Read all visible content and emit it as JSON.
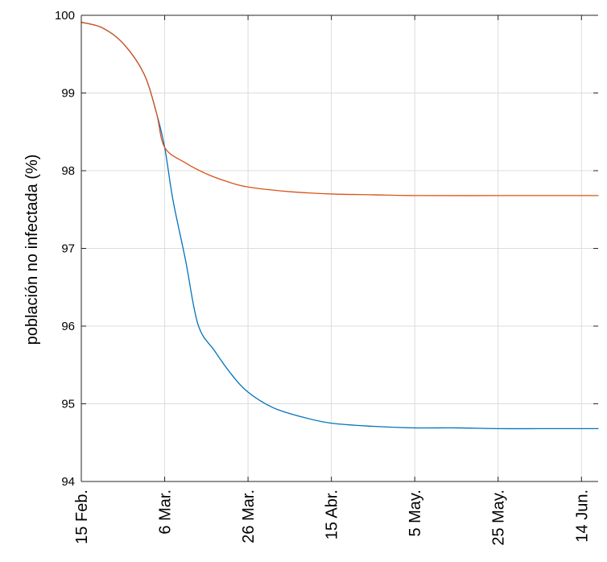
{
  "chart_data": {
    "type": "line",
    "title": "",
    "xlabel": "",
    "ylabel": "población no infectada (%)",
    "x_tick_labels": [
      "15 Feb.",
      "6 Mar.",
      "26 Mar.",
      "15 Abr.",
      "5 May.",
      "25 May.",
      "14 Jun."
    ],
    "y_tick_labels": [
      "94",
      "95",
      "96",
      "97",
      "98",
      "99",
      "100"
    ],
    "xlim": [
      "15 Feb.",
      "18 Jun."
    ],
    "ylim": [
      94,
      100
    ],
    "grid": true,
    "series": [
      {
        "color": "#0072bd",
        "points": [
          [
            "15 Feb.",
            99.91
          ],
          [
            "20 Feb.",
            99.84
          ],
          [
            "25 Feb.",
            99.64
          ],
          [
            "1 Mar.",
            99.25
          ],
          [
            "4 Mar.",
            98.75
          ],
          [
            "6 Mar.",
            98.3
          ],
          [
            "8 Mar.",
            97.62
          ],
          [
            "11 Mar.",
            96.85
          ],
          [
            "14 Mar.",
            96.02
          ],
          [
            "18 Mar.",
            95.68
          ],
          [
            "22 Mar.",
            95.38
          ],
          [
            "26 Mar.",
            95.15
          ],
          [
            "1 Abr.",
            94.95
          ],
          [
            "8 Abr.",
            94.83
          ],
          [
            "15 Abr.",
            94.75
          ],
          [
            "25 Abr.",
            94.71
          ],
          [
            "5 May.",
            94.69
          ],
          [
            "15 May.",
            94.69
          ],
          [
            "25 May.",
            94.68
          ],
          [
            "4 Jun.",
            94.68
          ],
          [
            "14 Jun.",
            94.68
          ],
          [
            "18 Jun.",
            94.68
          ]
        ]
      },
      {
        "color": "#d95319",
        "points": [
          [
            "15 Feb.",
            99.91
          ],
          [
            "20 Feb.",
            99.84
          ],
          [
            "25 Feb.",
            99.64
          ],
          [
            "1 Mar.",
            99.25
          ],
          [
            "4 Mar.",
            98.75
          ],
          [
            "6 Mar.",
            98.3
          ],
          [
            "11 Mar.",
            98.1
          ],
          [
            "16 Mar.",
            97.96
          ],
          [
            "21 Mar.",
            97.86
          ],
          [
            "26 Mar.",
            97.79
          ],
          [
            "5 Abr.",
            97.73
          ],
          [
            "15 Abr.",
            97.7
          ],
          [
            "25 Abr.",
            97.69
          ],
          [
            "5 May.",
            97.68
          ],
          [
            "25 May.",
            97.68
          ],
          [
            "14 Jun.",
            97.68
          ],
          [
            "18 Jun.",
            97.68
          ]
        ]
      }
    ]
  }
}
